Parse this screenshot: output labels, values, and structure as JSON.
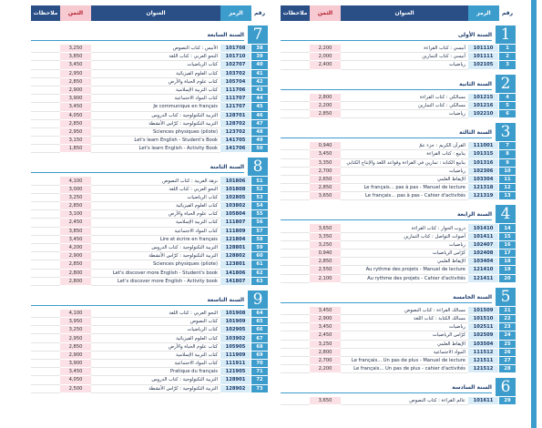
{
  "header": {
    "num_label": "رقم",
    "code_label": "الرمز",
    "title_label": "العنوان",
    "price_label": "الثمن",
    "notes_label": "ملاحظات"
  },
  "left_sections": [
    {
      "number": "7",
      "title": "السنة السابعة",
      "rows": [
        {
          "num": "38",
          "code": "101708",
          "title": "الأنيس : كتاب النصوص",
          "price": "3,250",
          "ltr": false
        },
        {
          "num": "39",
          "code": "101710",
          "title": "النحو العربي : كتاب اللغة",
          "price": "3,850",
          "ltr": false
        },
        {
          "num": "40",
          "code": "102707",
          "title": "كتاب الرياضيات",
          "price": "3,450",
          "ltr": false
        },
        {
          "num": "41",
          "code": "103702",
          "title": "كتاب العلوم الفيزيائية",
          "price": "2,950",
          "ltr": false
        },
        {
          "num": "42",
          "code": "105704",
          "title": "كتاب علوم الحياة والأرض",
          "price": "2,850",
          "ltr": false
        },
        {
          "num": "43",
          "code": "111706",
          "title": "كتاب التربية الإسلامية",
          "price": "2,900",
          "ltr": false
        },
        {
          "num": "44",
          "code": "111707",
          "title": "كتاب المواد الاجتماعية",
          "price": "3,900",
          "ltr": false
        },
        {
          "num": "45",
          "code": "121707",
          "title": "Je communique en français",
          "price": "3,450",
          "ltr": true
        },
        {
          "num": "46",
          "code": "128701",
          "title": "التربية التكنولوجية : كتاب الدروس",
          "price": "4,050",
          "ltr": false
        },
        {
          "num": "47",
          "code": "128702",
          "title": "التربية التكنولوجية : كرّاس الأنشطة",
          "price": "2,850",
          "ltr": false
        },
        {
          "num": "48",
          "code": "123702",
          "title": "Sciences physiques (pilote)",
          "price": "2,950",
          "ltr": true
        },
        {
          "num": "49",
          "code": "141705",
          "title": "Let's learn English - Student's Book",
          "price": "3,150",
          "ltr": true
        },
        {
          "num": "50",
          "code": "141706",
          "title": "Let's learn English - Activity Book",
          "price": "1,850",
          "ltr": true
        }
      ]
    },
    {
      "number": "8",
      "title": "السنة الثامنة",
      "rows": [
        {
          "num": "51",
          "code": "101806",
          "title": "نزهة العربية : كتاب النصوص",
          "price": "4,100",
          "ltr": false
        },
        {
          "num": "52",
          "code": "101808",
          "title": "النحو العربي : كتاب اللغة",
          "price": "3,000",
          "ltr": false
        },
        {
          "num": "53",
          "code": "102805",
          "title": "كتاب الرياضيات",
          "price": "3,250",
          "ltr": false
        },
        {
          "num": "54",
          "code": "103802",
          "title": "كتاب العلوم الفيزيائية",
          "price": "2,850",
          "ltr": false
        },
        {
          "num": "55",
          "code": "105804",
          "title": "كتاب علوم الحياة والأرض",
          "price": "3,100",
          "ltr": false
        },
        {
          "num": "56",
          "code": "111807",
          "title": "كتاب التربية الإسلامية",
          "price": "2,450",
          "ltr": false
        },
        {
          "num": "57",
          "code": "111809",
          "title": "كتاب المواد الاجتماعية",
          "price": "3,850",
          "ltr": false
        },
        {
          "num": "58",
          "code": "121804",
          "title": "Lire et écrire en français",
          "price": "3,450",
          "ltr": true
        },
        {
          "num": "59",
          "code": "128801",
          "title": "التربية التكنولوجية : كتاب الدروس",
          "price": "4,200",
          "ltr": false
        },
        {
          "num": "60",
          "code": "128802",
          "title": "التربية التكنولوجية : كرّاس الأنشطة",
          "price": "2,900",
          "ltr": false
        },
        {
          "num": "61",
          "code": "123801",
          "title": "Sciences physiques (pilote)",
          "price": "2,850",
          "ltr": true
        },
        {
          "num": "62",
          "code": "141806",
          "title": "Let's discover more English - Student's book",
          "price": "2,800",
          "ltr": true
        },
        {
          "num": "63",
          "code": "141807",
          "title": "Let's discover more English - Activity book",
          "price": "2,800",
          "ltr": true
        }
      ]
    },
    {
      "number": "9",
      "title": "السنة التاسعة",
      "rows": [
        {
          "num": "64",
          "code": "101908",
          "title": "النحو العربي : كتاب اللغة",
          "price": "4,100",
          "ltr": false
        },
        {
          "num": "65",
          "code": "101909",
          "title": "كتاب النصوص",
          "price": "3,950",
          "ltr": false
        },
        {
          "num": "66",
          "code": "102905",
          "title": "كتاب الرياضيات",
          "price": "3,250",
          "ltr": false
        },
        {
          "num": "67",
          "code": "103902",
          "title": "كتاب العلوم الفيزيائية",
          "price": "2,950",
          "ltr": false
        },
        {
          "num": "68",
          "code": "105905",
          "title": "كتاب علوم الحياة والأرض",
          "price": "2,850",
          "ltr": false
        },
        {
          "num": "69",
          "code": "111909",
          "title": "كتاب التربية الإسلامية",
          "price": "2,900",
          "ltr": false
        },
        {
          "num": "70",
          "code": "111911",
          "title": "كتاب المواد الاجتماعية",
          "price": "3,900",
          "ltr": false
        },
        {
          "num": "71",
          "code": "121905",
          "title": "Pratique du français",
          "price": "3,450",
          "ltr": true
        },
        {
          "num": "72",
          "code": "128901",
          "title": "التربية التكنولوجية : كتاب الدروس",
          "price": "4,050",
          "ltr": false
        },
        {
          "num": "73",
          "code": "128902",
          "title": "التربية التكنولوجية : كرّاس الأنشطة",
          "price": "2,500",
          "ltr": false
        }
      ]
    }
  ],
  "right_sections": [
    {
      "number": "1",
      "title": "السنة الأولى",
      "rows": [
        {
          "num": "1",
          "code": "101110",
          "title": "أنيسي : كتاب القراءة",
          "price": "2,200",
          "ltr": false
        },
        {
          "num": "2",
          "code": "101111",
          "title": "أنيسي : كتاب التمارين",
          "price": "2,000",
          "ltr": false
        },
        {
          "num": "3",
          "code": "102105",
          "title": "رياضيات",
          "price": "2,400",
          "ltr": false
        }
      ]
    },
    {
      "number": "2",
      "title": "السنة الثانية",
      "rows": [
        {
          "num": "4",
          "code": "101215",
          "title": "مسالكي : كتاب القراءة",
          "price": "2,800",
          "ltr": false
        },
        {
          "num": "5",
          "code": "101216",
          "title": "مسالكي : كتاب التمارين",
          "price": "2,200",
          "ltr": false
        },
        {
          "num": "6",
          "code": "102210",
          "title": "رياضيات",
          "price": "2,850",
          "ltr": false
        }
      ]
    },
    {
      "number": "3",
      "title": "السنة الثالثة",
      "rows": [
        {
          "num": "7",
          "code": "111001",
          "title": "القرآن الكريم : جزء عمّ",
          "price": "0,940",
          "ltr": false
        },
        {
          "num": "8",
          "code": "101315",
          "title": "ينابيع : كتاب القراءة",
          "price": "3,450",
          "ltr": false
        },
        {
          "num": "9",
          "code": "101316",
          "title": "ينابيع الكتابة : تمارين في القراءة وقواعد اللغة والإنتاج الكتابي",
          "price": "3,350",
          "ltr": false
        },
        {
          "num": "10",
          "code": "102306",
          "title": "رياضيات",
          "price": "2,700",
          "ltr": false
        },
        {
          "num": "11",
          "code": "103304",
          "title": "الإيقاظ العلمي",
          "price": "2,650",
          "ltr": false
        },
        {
          "num": "12",
          "code": "121318",
          "title": "Le français... pas à pas - Manuel de lecture",
          "price": "2,850",
          "ltr": true
        },
        {
          "num": "13",
          "code": "121319",
          "title": "Le français... pas à pas - Cahier d'activités",
          "price": "3,650",
          "ltr": true
        }
      ]
    },
    {
      "number": "4",
      "title": "السنة الرابعة",
      "rows": [
        {
          "num": "14",
          "code": "101410",
          "title": "دروب الحوار : كتاب القراءة",
          "price": "3,650",
          "ltr": false
        },
        {
          "num": "15",
          "code": "101411",
          "title": "أصوات التواصل : كتاب التمارين",
          "price": "3,350",
          "ltr": false
        },
        {
          "num": "16",
          "code": "102407",
          "title": "رياضيات",
          "price": "3,250",
          "ltr": false
        },
        {
          "num": "17",
          "code": "102408",
          "title": "كرّاس الرياضيات",
          "price": "0,940",
          "ltr": false
        },
        {
          "num": "18",
          "code": "103404",
          "title": "الإيقاظ العلمي",
          "price": "2,850",
          "ltr": false
        },
        {
          "num": "19",
          "code": "121410",
          "title": "Au rythme des projets - Manuel de lecture",
          "price": "2,550",
          "ltr": true
        },
        {
          "num": "20",
          "code": "121411",
          "title": "Au rythme des projets - Cahier d'activités",
          "price": "2,100",
          "ltr": true
        }
      ]
    },
    {
      "number": "5",
      "title": "السنة الخامسة",
      "rows": [
        {
          "num": "21",
          "code": "101509",
          "title": "مسالك القراءة : كتاب النصوص",
          "price": "3,450",
          "ltr": false
        },
        {
          "num": "22",
          "code": "101510",
          "title": "مسالك الكتابة : كتاب اللغة",
          "price": "2,900",
          "ltr": false
        },
        {
          "num": "23",
          "code": "102511",
          "title": "رياضيات",
          "price": "3,450",
          "ltr": false
        },
        {
          "num": "24",
          "code": "102509",
          "title": "كرّاس الرياضيات",
          "price": "2,450",
          "ltr": false
        },
        {
          "num": "25",
          "code": "103504",
          "title": "الإيقاظ العلمي",
          "price": "3,250",
          "ltr": false
        },
        {
          "num": "26",
          "code": "111512",
          "title": "المواد الاجتماعية",
          "price": "2,800",
          "ltr": false
        },
        {
          "num": "27",
          "code": "121511",
          "title": "Le français... Un pas de plus - Manuel de lecture",
          "price": "2,700",
          "ltr": true
        },
        {
          "num": "28",
          "code": "121512",
          "title": "Le français... Un pas de plus - cahier d'activités",
          "price": "2,200",
          "ltr": true
        }
      ]
    },
    {
      "number": "6",
      "title": "السنة السادسة",
      "rows": [
        {
          "num": "29",
          "code": "101611",
          "title": "عالم القراءة : كتاب النصوص",
          "price": "3,650",
          "ltr": false
        }
      ]
    }
  ]
}
